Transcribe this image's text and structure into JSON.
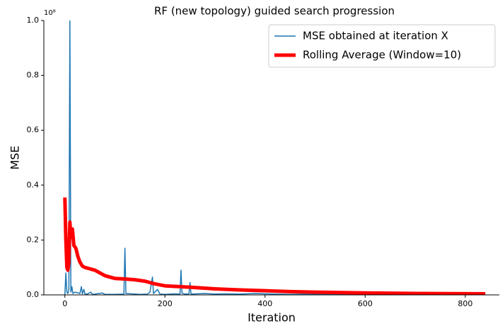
{
  "chart_data": {
    "type": "line",
    "title": "RF (new topology) guided search progression",
    "x_label": "Iteration",
    "y_label": "MSE",
    "y_offset_label": "10⁸",
    "xlim": [
      -42,
      868
    ],
    "ylim": [
      0,
      1.0
    ],
    "xticks": [
      0,
      200,
      400,
      600,
      800
    ],
    "yticks": [
      {
        "value": 0,
        "label": "0.0"
      },
      {
        "value": 0.2,
        "label": "0.2"
      },
      {
        "value": 0.4,
        "label": "0.4"
      },
      {
        "value": 0.6,
        "label": "0.6"
      },
      {
        "value": 0.8,
        "label": "0.8"
      },
      {
        "value": 1.0,
        "label": "1.0"
      }
    ],
    "legend": "upper right",
    "series": [
      {
        "name": "MSE obtained at iteration X",
        "color": "#1f77b4",
        "width": 1.5,
        "x": [
          0,
          2,
          4,
          6,
          8,
          10,
          12,
          14,
          16,
          20,
          25,
          30,
          33,
          35,
          38,
          40,
          45,
          52,
          55,
          60,
          75,
          80,
          100,
          118,
          120,
          122,
          150,
          165,
          170,
          175,
          177,
          185,
          190,
          200,
          220,
          230,
          232,
          234,
          240,
          248,
          250,
          252,
          280,
          300,
          320,
          350,
          380,
          400,
          420,
          450,
          480,
          500,
          550,
          600,
          650,
          700,
          750,
          800,
          840
        ],
        "values": [
          0.0,
          0.08,
          0.01,
          0.005,
          0.02,
          1.0,
          0.01,
          0.03,
          0.005,
          0.01,
          0.008,
          0.005,
          0.03,
          0.004,
          0.02,
          0.004,
          0.003,
          0.01,
          0.002,
          0.003,
          0.007,
          0.002,
          0.002,
          0.003,
          0.17,
          0.005,
          0.002,
          0.003,
          0.01,
          0.065,
          0.005,
          0.02,
          0.003,
          0.002,
          0.004,
          0.003,
          0.09,
          0.006,
          0.003,
          0.004,
          0.045,
          0.003,
          0.005,
          0.003,
          0.004,
          0.003,
          0.005,
          0.004,
          0.003,
          0.002,
          0.003,
          0.002,
          0.002,
          0.001,
          0.001,
          0.001,
          0.001,
          0.001,
          0.001
        ]
      },
      {
        "name": "Rolling Average (Window=10)",
        "color": "#ff0000",
        "width": 5,
        "x": [
          0,
          2,
          4,
          6,
          8,
          10,
          12,
          15,
          18,
          22,
          26,
          30,
          35,
          40,
          50,
          60,
          70,
          80,
          90,
          100,
          120,
          140,
          160,
          180,
          200,
          250,
          300,
          350,
          400,
          450,
          500,
          600,
          700,
          840
        ],
        "values": [
          0.355,
          0.2,
          0.1,
          0.09,
          0.12,
          0.265,
          0.21,
          0.24,
          0.18,
          0.17,
          0.14,
          0.12,
          0.105,
          0.1,
          0.095,
          0.09,
          0.08,
          0.07,
          0.065,
          0.06,
          0.058,
          0.055,
          0.05,
          0.04,
          0.033,
          0.028,
          0.022,
          0.018,
          0.015,
          0.012,
          0.01,
          0.007,
          0.005,
          0.004
        ]
      }
    ]
  }
}
